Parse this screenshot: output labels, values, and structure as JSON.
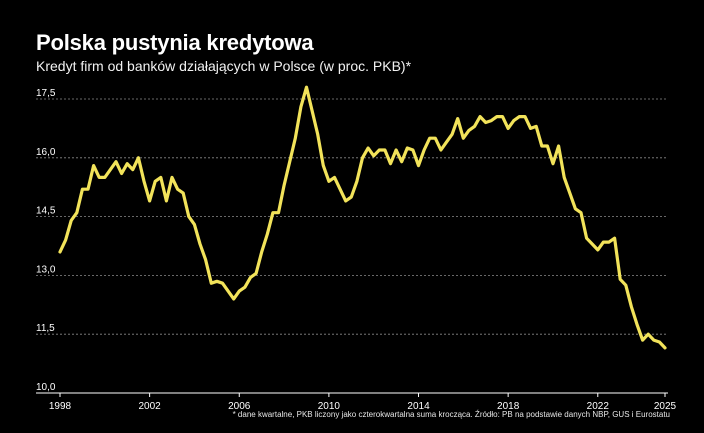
{
  "header": {
    "title": "Polska pustynia kredytowa",
    "subtitle": "Kredyt firm od banków działających w Polsce (w proc. PKB)*"
  },
  "footnote": "* dane kwartalne, PKB liczony jako czterokwartalna suma krocząca. Źródło: PB na podstawie danych NBP, GUS i Eurostatu",
  "colors": {
    "background": "#000000",
    "line": "#f2e35a",
    "grid": "#8a8a8a",
    "text": "#ffffff"
  },
  "chart_data": {
    "type": "line",
    "title": "Polska pustynia kredytowa",
    "subtitle": "Kredyt firm od banków działających w Polsce (w proc. PKB)*",
    "xlabel": "",
    "ylabel": "",
    "xlim": [
      1998,
      2025
    ],
    "ylim": [
      10.0,
      17.5
    ],
    "yticks": [
      10.0,
      11.5,
      13.0,
      14.5,
      16.0,
      17.5
    ],
    "ytick_labels": [
      "10,0",
      "11,5",
      "13,0",
      "14,5",
      "16,0",
      "17,5"
    ],
    "xticks": [
      1998,
      2002,
      2006,
      2010,
      2014,
      2018,
      2022,
      2025
    ],
    "xtick_labels": [
      "1998",
      "2002",
      "2006",
      "2010",
      "2014",
      "2018",
      "2022",
      "2025"
    ],
    "grid": "horizontal dotted",
    "legend": "none",
    "series": [
      {
        "x": [
          1998.0,
          1998.25,
          1998.5,
          1998.75,
          1999.0,
          1999.25,
          1999.5,
          1999.75,
          2000.0,
          2000.25,
          2000.5,
          2000.75,
          2001.0,
          2001.25,
          2001.5,
          2001.75,
          2002.0,
          2002.25,
          2002.5,
          2002.75,
          2003.0,
          2003.25,
          2003.5,
          2003.75,
          2004.0,
          2004.25,
          2004.5,
          2004.75,
          2005.0,
          2005.25,
          2005.5,
          2005.75,
          2006.0,
          2006.25,
          2006.5,
          2006.75,
          2007.0,
          2007.25,
          2007.5,
          2007.75,
          2008.0,
          2008.25,
          2008.5,
          2008.75,
          2009.0,
          2009.25,
          2009.5,
          2009.75,
          2010.0,
          2010.25,
          2010.5,
          2010.75,
          2011.0,
          2011.25,
          2011.5,
          2011.75,
          2012.0,
          2012.25,
          2012.5,
          2012.75,
          2013.0,
          2013.25,
          2013.5,
          2013.75,
          2014.0,
          2014.25,
          2014.5,
          2014.75,
          2015.0,
          2015.25,
          2015.5,
          2015.75,
          2016.0,
          2016.25,
          2016.5,
          2016.75,
          2017.0,
          2017.25,
          2017.5,
          2017.75,
          2018.0,
          2018.25,
          2018.5,
          2018.75,
          2019.0,
          2019.25,
          2019.5,
          2019.75,
          2020.0,
          2020.25,
          2020.5,
          2020.75,
          2021.0,
          2021.25,
          2021.5,
          2021.75,
          2022.0,
          2022.25,
          2022.5,
          2022.75,
          2023.0,
          2023.25,
          2023.5,
          2023.75,
          2024.0,
          2024.25,
          2024.5,
          2024.75,
          2025.0
        ],
        "y": [
          13.6,
          13.9,
          14.4,
          14.6,
          15.2,
          15.2,
          15.8,
          15.5,
          15.5,
          15.7,
          15.9,
          15.6,
          15.85,
          15.7,
          16.0,
          15.4,
          14.9,
          15.4,
          15.5,
          14.9,
          15.5,
          15.2,
          15.1,
          14.5,
          14.3,
          13.8,
          13.4,
          12.8,
          12.85,
          12.8,
          12.6,
          12.4,
          12.6,
          12.7,
          12.95,
          13.05,
          13.6,
          14.05,
          14.6,
          14.6,
          15.3,
          15.9,
          16.5,
          17.3,
          17.8,
          17.2,
          16.6,
          15.8,
          15.4,
          15.5,
          15.2,
          14.9,
          15.0,
          15.4,
          16.0,
          16.25,
          16.05,
          16.2,
          16.2,
          15.85,
          16.2,
          15.9,
          16.25,
          16.2,
          15.8,
          16.2,
          16.5,
          16.5,
          16.2,
          16.4,
          16.6,
          17.0,
          16.5,
          16.7,
          16.8,
          17.05,
          16.9,
          16.95,
          17.05,
          17.05,
          16.75,
          16.95,
          17.05,
          17.05,
          16.75,
          16.8,
          16.3,
          16.3,
          15.85,
          16.3,
          15.5,
          15.1,
          14.7,
          14.6,
          13.95,
          13.8,
          13.65,
          13.85,
          13.85,
          13.95,
          12.9,
          12.75,
          12.2,
          11.75,
          11.35,
          11.5,
          11.35,
          11.3,
          11.15
        ]
      }
    ]
  }
}
